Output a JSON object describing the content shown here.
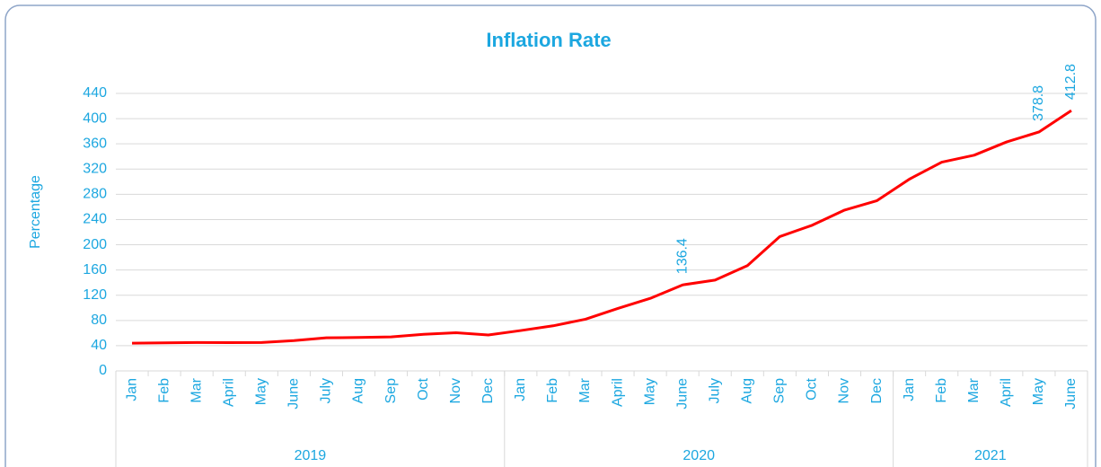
{
  "chart_data": {
    "type": "line",
    "title": "Inflation Rate",
    "y_label": "Percentage",
    "categories": [
      "Jan",
      "Feb",
      "Mar",
      "April",
      "May",
      "June",
      "July",
      "Aug",
      "Sep",
      "Oct",
      "Nov",
      "Dec",
      "Jan",
      "Feb",
      "Mar",
      "April",
      "May",
      "June",
      "July",
      "Aug",
      "Sep",
      "Oct",
      "Nov",
      "Dec",
      "Jan",
      "Feb",
      "Mar",
      "April",
      "May",
      "June"
    ],
    "category_groups": [
      {
        "label": "2019",
        "span": 12
      },
      {
        "label": "2020",
        "span": 12
      },
      {
        "label": "2021",
        "span": 6
      }
    ],
    "series": [
      {
        "name": "Inflation Rate",
        "color": "#ff0000",
        "values": [
          44,
          44.5,
          45,
          44.8,
          45,
          48,
          52.5,
          53,
          54,
          58,
          60.5,
          57,
          64,
          71.5,
          82,
          99,
          115,
          136.4,
          144,
          167,
          213,
          231,
          255,
          270,
          304,
          331,
          342,
          363,
          378.8,
          412.8
        ],
        "value_labels": [
          null,
          null,
          null,
          null,
          null,
          null,
          null,
          null,
          null,
          null,
          null,
          null,
          null,
          null,
          null,
          null,
          null,
          "136.4",
          null,
          null,
          null,
          null,
          null,
          null,
          null,
          null,
          null,
          null,
          "378.8",
          "412.8"
        ]
      }
    ],
    "ylim": [
      0,
      440
    ],
    "yticks": [
      0,
      40,
      80,
      120,
      160,
      200,
      240,
      280,
      320,
      360,
      400,
      440
    ],
    "grid": true
  }
}
